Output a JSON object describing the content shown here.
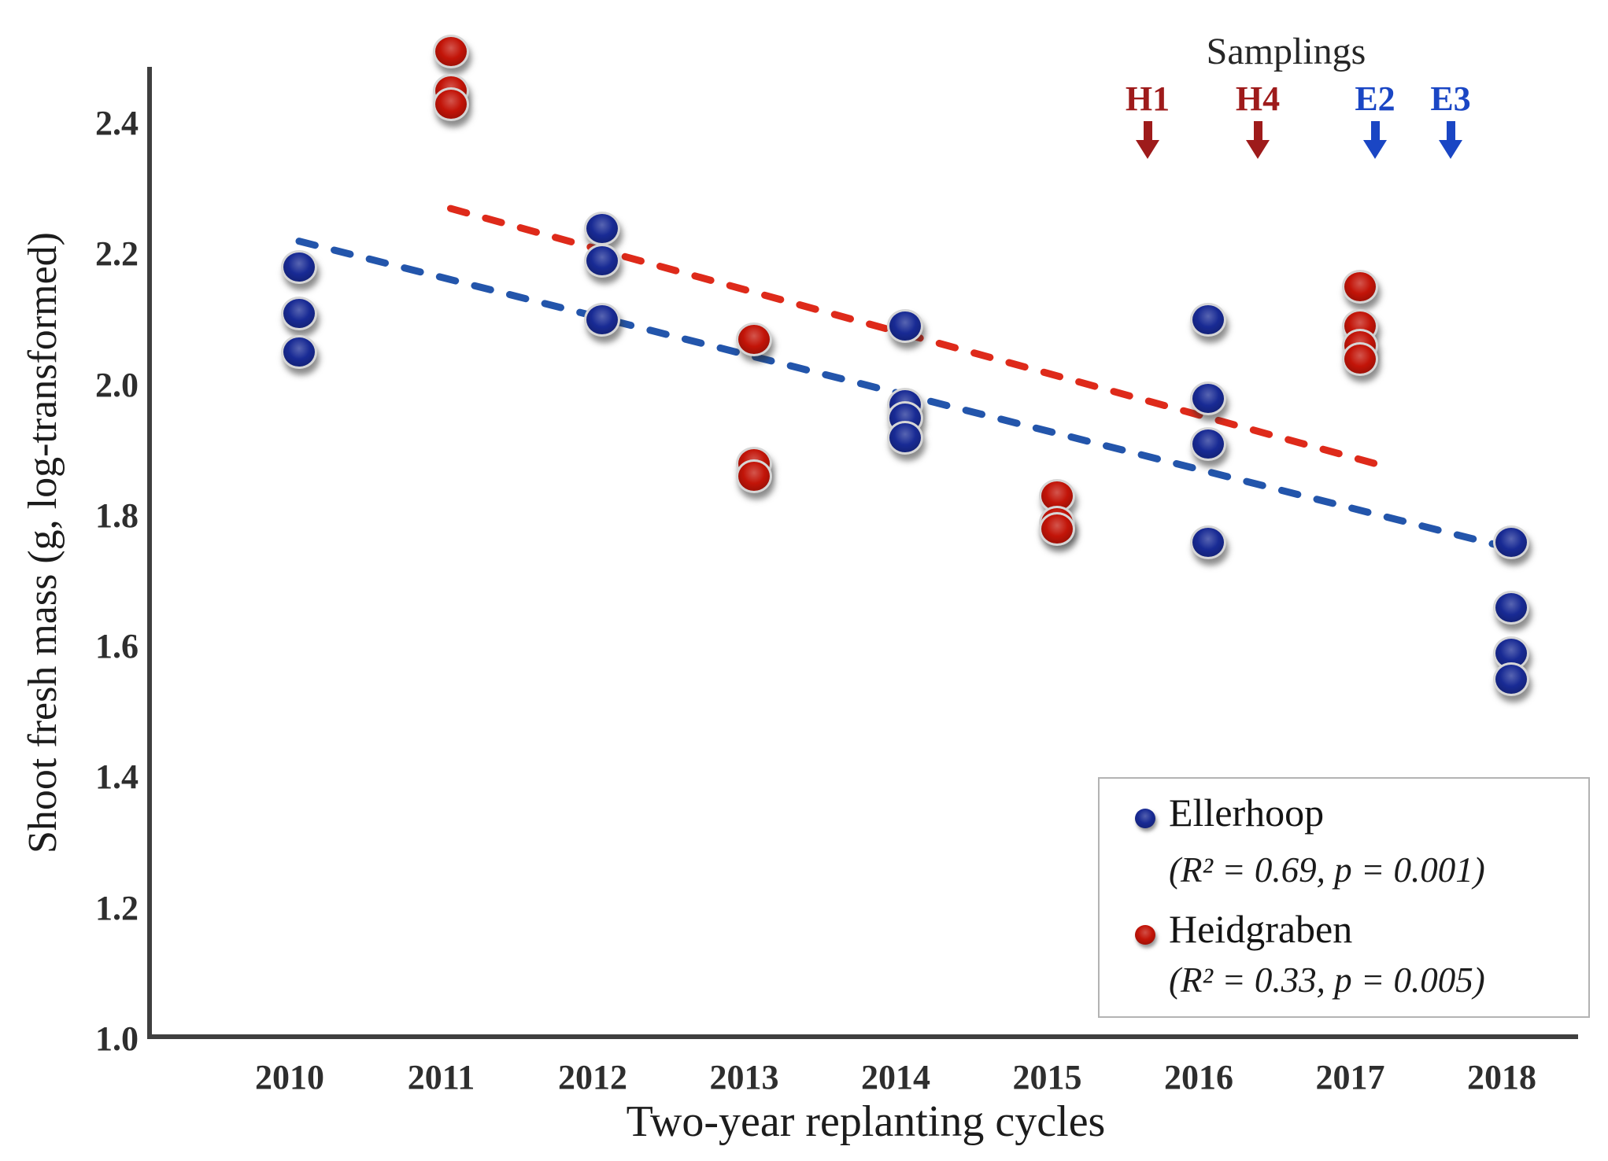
{
  "figure": {
    "x_axis_title": "Two-year replanting cycles",
    "y_axis_title": "Shoot fresh mass (g, log-transformed)",
    "annotation_title": "Samplings"
  },
  "chart_data": {
    "type": "scatter",
    "title": "",
    "xlabel": "Two-year replanting cycles",
    "ylabel": "Shoot fresh mass (g, log-transformed)",
    "x_tick_labels": [
      "2010",
      "2011",
      "2012",
      "2013",
      "2014",
      "2015",
      "2016",
      "2017",
      "2018"
    ],
    "y_tick_labels": [
      "2.4",
      "2.2",
      "2.0",
      "1.8",
      "1.6",
      "1.4",
      "1.2",
      "1.0"
    ],
    "xlim": [
      2009.0,
      2018.7
    ],
    "ylim": [
      1.0,
      2.55
    ],
    "grid": false,
    "legend_position": "lower right",
    "series": [
      {
        "name": "Ellerhoop",
        "marker_color": "#182a94",
        "trend_color": "#2355ab",
        "trend_style": "dashed",
        "r_squared": 0.69,
        "p_value": 0.001,
        "points": [
          {
            "x": 2010,
            "y": 2.18
          },
          {
            "x": 2010,
            "y": 2.11
          },
          {
            "x": 2010,
            "y": 2.05
          },
          {
            "x": 2012,
            "y": 2.24
          },
          {
            "x": 2012,
            "y": 2.19
          },
          {
            "x": 2012,
            "y": 2.1
          },
          {
            "x": 2014,
            "y": 2.09
          },
          {
            "x": 2014,
            "y": 1.97
          },
          {
            "x": 2014,
            "y": 1.95
          },
          {
            "x": 2014,
            "y": 1.92
          },
          {
            "x": 2016,
            "y": 2.1
          },
          {
            "x": 2016,
            "y": 1.98
          },
          {
            "x": 2016,
            "y": 1.91
          },
          {
            "x": 2016,
            "y": 1.76
          },
          {
            "x": 2018,
            "y": 1.76
          },
          {
            "x": 2018,
            "y": 1.66
          },
          {
            "x": 2018,
            "y": 1.59
          },
          {
            "x": 2018,
            "y": 1.55
          }
        ],
        "trend": {
          "x1": 2010.0,
          "y1": 2.22,
          "x2": 2018.0,
          "y2": 1.75
        }
      },
      {
        "name": "Heidgraben",
        "marker_color": "#c21408",
        "trend_color": "#de2a1a",
        "trend_style": "dashed",
        "r_squared": 0.33,
        "p_value": 0.005,
        "points": [
          {
            "x": 2011,
            "y": 2.51
          },
          {
            "x": 2011,
            "y": 2.45
          },
          {
            "x": 2011,
            "y": 2.43
          },
          {
            "x": 2013,
            "y": 2.07
          },
          {
            "x": 2013,
            "y": 1.88
          },
          {
            "x": 2013,
            "y": 1.86
          },
          {
            "x": 2015,
            "y": 1.83
          },
          {
            "x": 2015,
            "y": 1.79
          },
          {
            "x": 2015,
            "y": 1.78
          },
          {
            "x": 2017,
            "y": 2.15
          },
          {
            "x": 2017,
            "y": 2.09
          },
          {
            "x": 2017,
            "y": 2.06
          },
          {
            "x": 2017,
            "y": 2.04
          }
        ],
        "trend": {
          "x1": 2011.0,
          "y1": 2.27,
          "x2": 2017.1,
          "y2": 1.88
        }
      }
    ],
    "annotations": {
      "title": "Samplings",
      "markers": [
        {
          "label": "H1",
          "color": "#9e1b1b"
        },
        {
          "label": "H4",
          "color": "#9e1b1b"
        },
        {
          "label": "E2",
          "color": "#1a46c4"
        },
        {
          "label": "E3",
          "color": "#1a46c4"
        }
      ]
    }
  },
  "legend": {
    "items": [
      {
        "label": "Ellerhoop",
        "stats": "(R² = 0.69, p = 0.001)",
        "color": "#182a94"
      },
      {
        "label": "Heidgraben",
        "stats": "(R² = 0.33, p = 0.005)",
        "color": "#c21408"
      }
    ]
  }
}
